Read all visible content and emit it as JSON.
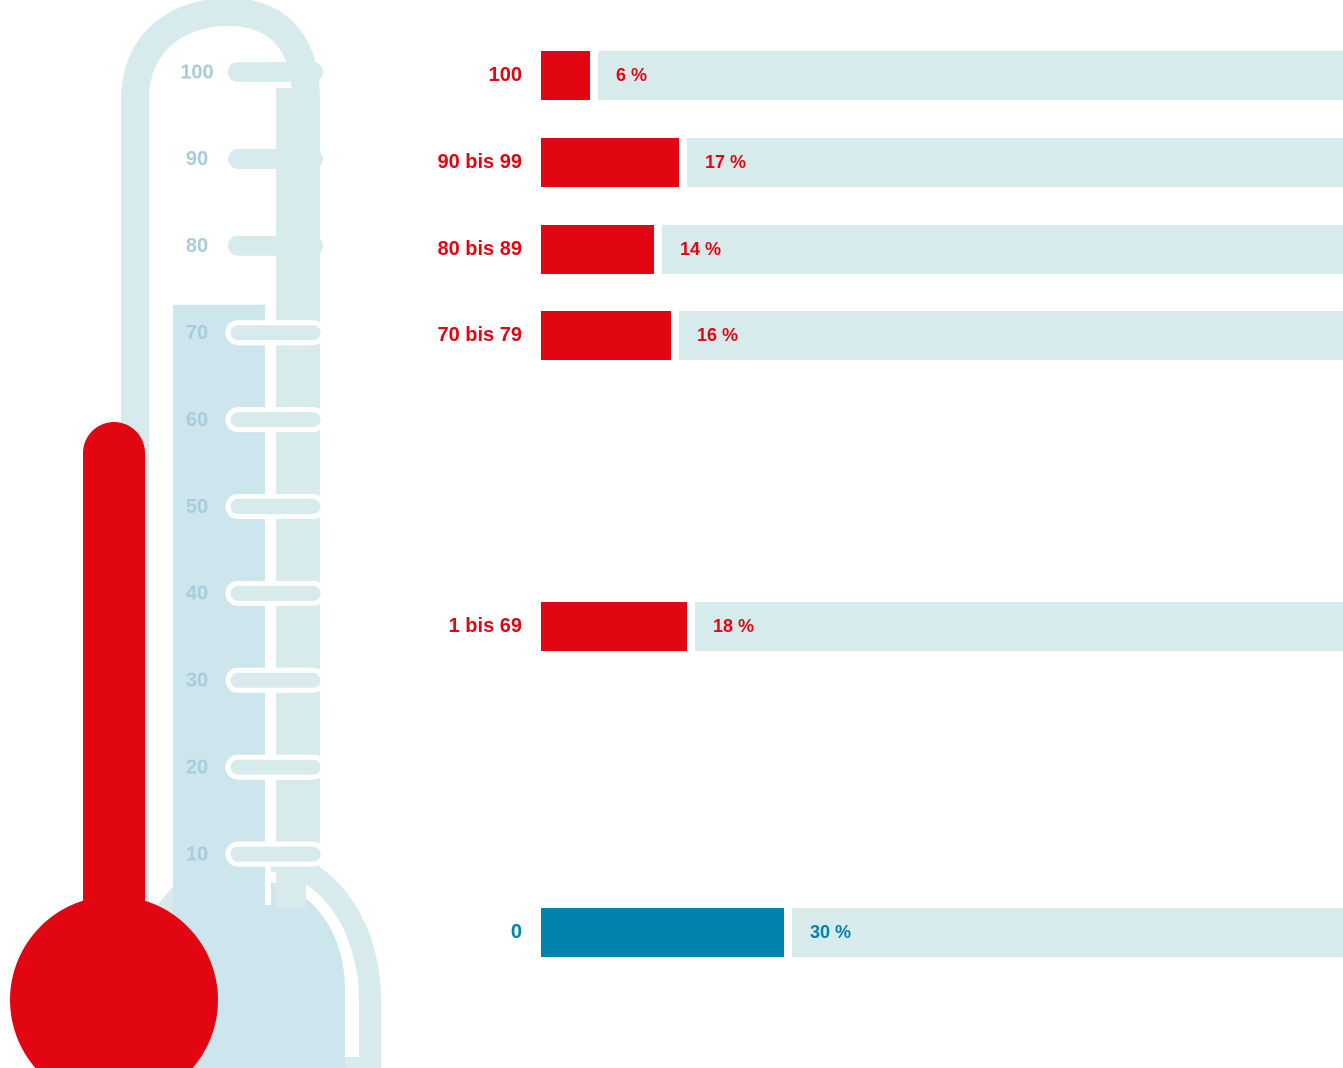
{
  "thermometer": {
    "scale_labels": [
      "100",
      "90",
      "80",
      "70",
      "60",
      "50",
      "40",
      "30",
      "20",
      "10"
    ],
    "scale_values": [
      100,
      90,
      80,
      70,
      60,
      50,
      40,
      30,
      20,
      10
    ],
    "level": 70
  },
  "chart_data": {
    "type": "bar",
    "orientation": "horizontal",
    "categories": [
      "100",
      "90 bis 99",
      "80 bis 89",
      "70 bis 79",
      "1 bis 69",
      "0"
    ],
    "values": [
      6,
      17,
      14,
      16,
      18,
      30
    ],
    "value_labels": [
      "6 %",
      "17 %",
      "14 %",
      "16 %",
      "18 %",
      "30 %"
    ],
    "xlim": [
      0,
      100
    ],
    "grid": false,
    "legend": "none"
  },
  "colors": {
    "red": "#e20613",
    "blue": "#0083ad",
    "track": "#d7eaec",
    "thermo_outer": "#d7eaec",
    "thermo_inner": "#cde6ed",
    "scale_text": "#a9ccda"
  }
}
